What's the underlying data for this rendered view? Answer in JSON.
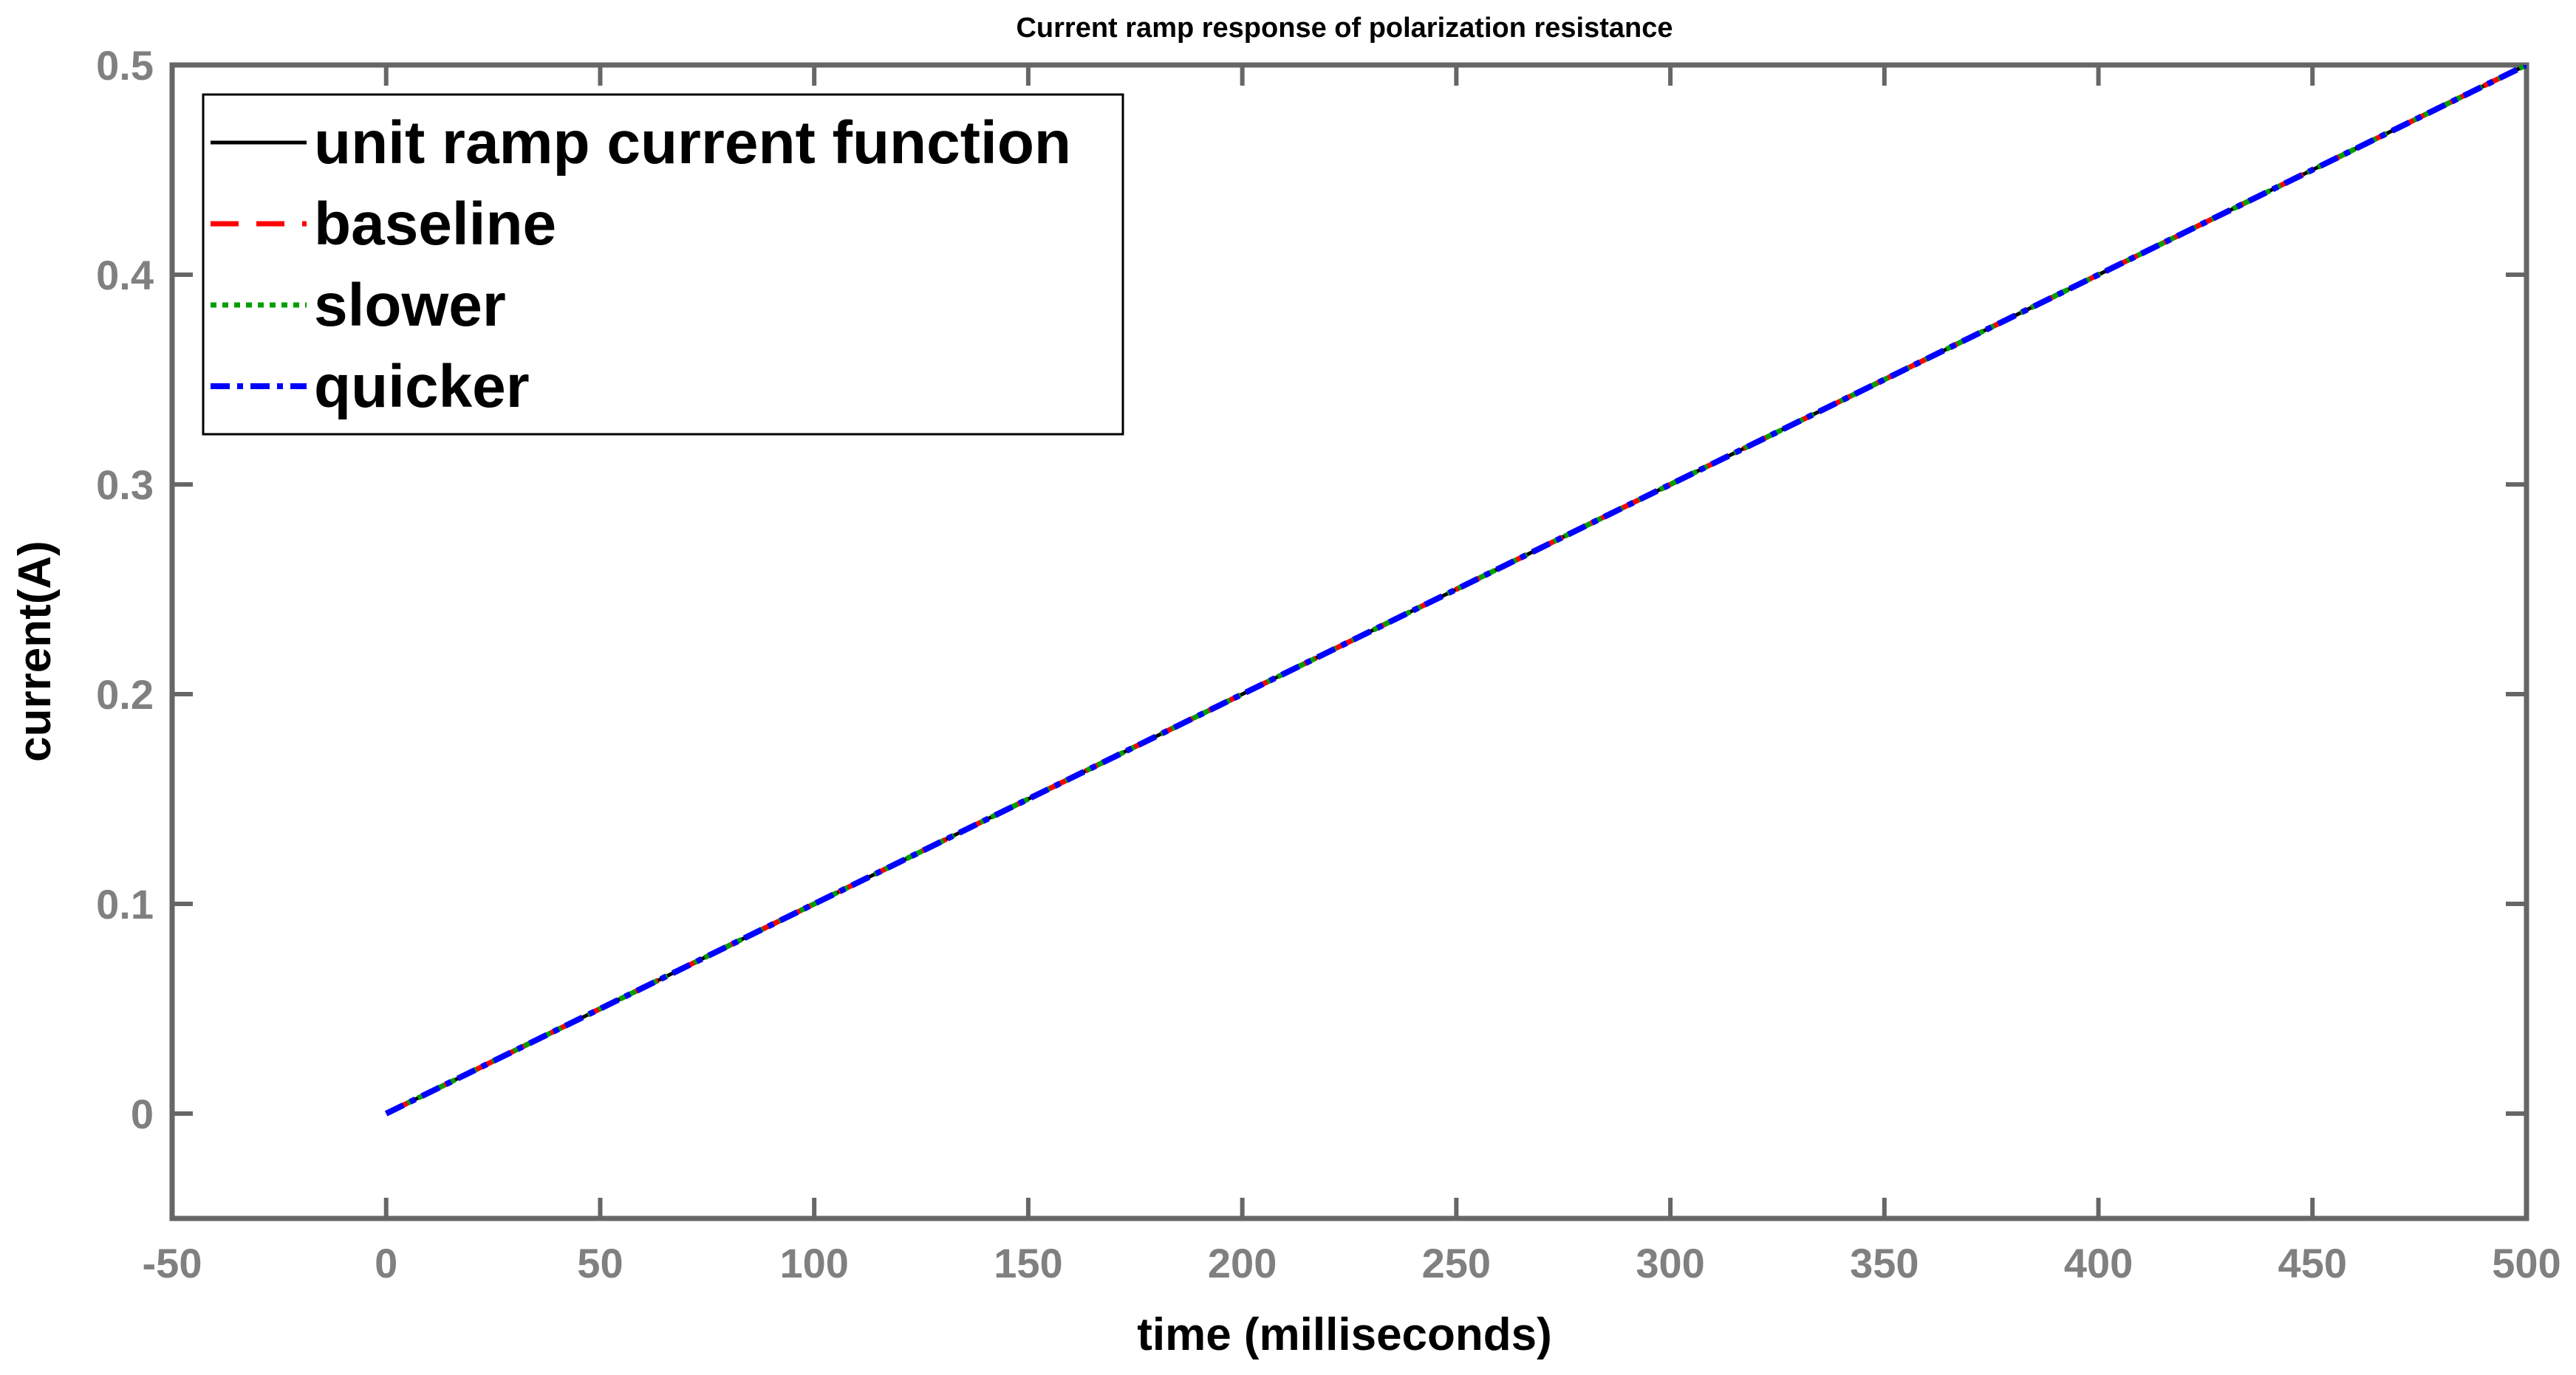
{
  "chart_data": {
    "type": "line",
    "title": "Current ramp response of polarization resistance",
    "xlabel": "time (milliseconds)",
    "ylabel": "current(A)",
    "xlim": [
      -50,
      500
    ],
    "ylim": [
      -0.05,
      0.5
    ],
    "xticks": [
      -50,
      0,
      50,
      100,
      150,
      200,
      250,
      300,
      350,
      400,
      450,
      500
    ],
    "yticks": [
      0,
      0.1,
      0.2,
      0.3,
      0.4,
      0.5
    ],
    "xtick_labels": [
      "-50",
      "0",
      "50",
      "100",
      "150",
      "200",
      "250",
      "300",
      "350",
      "400",
      "450",
      "500"
    ],
    "ytick_labels": [
      "0",
      "0.1",
      "0.2",
      "0.3",
      "0.4",
      "0.5"
    ],
    "grid": false,
    "legend_position": "top-left",
    "series": [
      {
        "name": "unit ramp current function",
        "color": "#000000",
        "style": "solid",
        "x": [
          0,
          500
        ],
        "y": [
          0,
          0.5
        ]
      },
      {
        "name": "baseline",
        "color": "#ff0000",
        "style": "dashed",
        "x": [
          0,
          500
        ],
        "y": [
          0,
          0.5
        ]
      },
      {
        "name": "slower",
        "color": "#00a000",
        "style": "dotted",
        "x": [
          0,
          500
        ],
        "y": [
          0,
          0.5
        ]
      },
      {
        "name": "quicker",
        "color": "#0000ff",
        "style": "dashdot",
        "x": [
          0,
          500
        ],
        "y": [
          0,
          0.5
        ]
      }
    ]
  }
}
